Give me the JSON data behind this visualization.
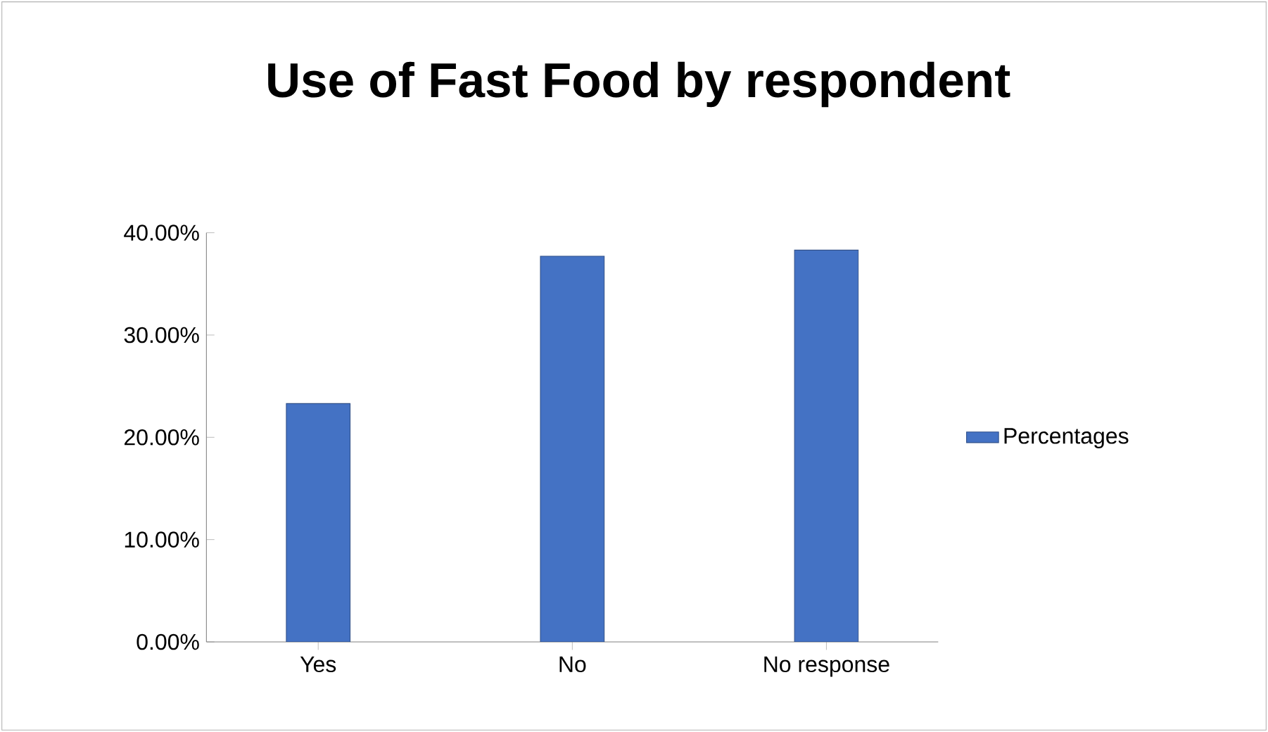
{
  "chart_data": {
    "type": "bar",
    "title": "Use of Fast Food by respondent",
    "categories": [
      "Yes",
      "No",
      "No response"
    ],
    "series": [
      {
        "name": "Percentages",
        "color": "#4472c4",
        "values": [
          23.3,
          37.7,
          38.3
        ]
      }
    ],
    "ylim": [
      0,
      40
    ],
    "yticks": [
      {
        "value": 0,
        "label": "0.00%"
      },
      {
        "value": 10,
        "label": "10.00%"
      },
      {
        "value": 20,
        "label": "20.00%"
      },
      {
        "value": 30,
        "label": "30.00%"
      },
      {
        "value": 40,
        "label": "40.00%"
      }
    ],
    "grid": false,
    "legend": "right"
  }
}
